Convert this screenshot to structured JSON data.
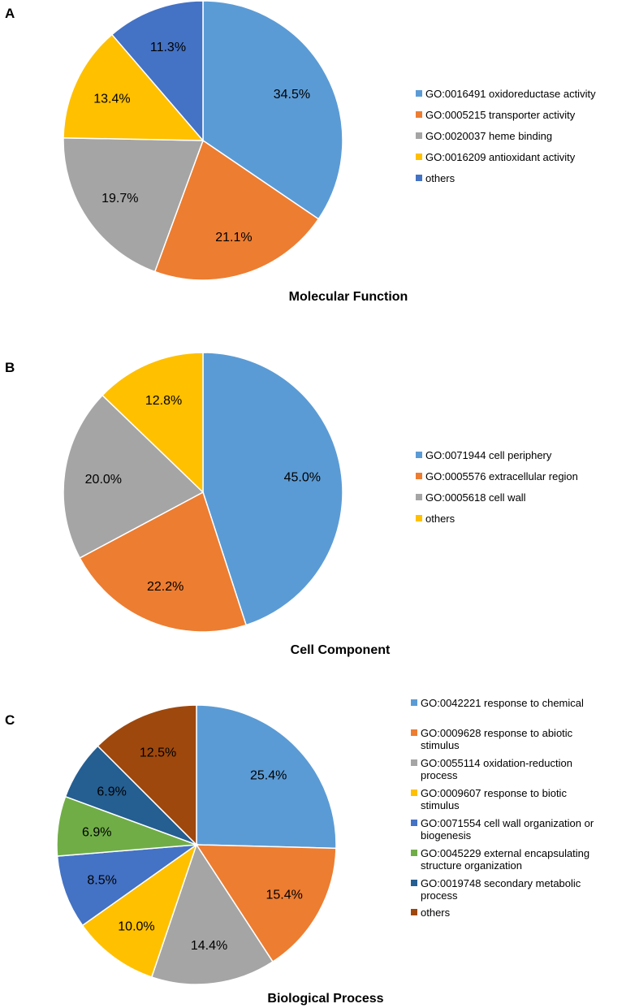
{
  "chart_data": [
    {
      "type": "pie",
      "panel": "A",
      "title": "Molecular Function",
      "series": [
        {
          "name": "GO:0016491 oxidoreductase activity",
          "value": 34.5,
          "label": "34.5%",
          "color": "#5B9BD5"
        },
        {
          "name": "GO:0005215 transporter activity",
          "value": 21.1,
          "label": "21.1%",
          "color": "#ED7D31"
        },
        {
          "name": "GO:0020037 heme binding",
          "value": 19.7,
          "label": "19.7%",
          "color": "#A5A5A5"
        },
        {
          "name": "GO:0016209 antioxidant activity",
          "value": 13.4,
          "label": "13.4%",
          "color": "#FFC000"
        },
        {
          "name": "others",
          "value": 11.3,
          "label": "11.3%",
          "color": "#4472C4"
        }
      ]
    },
    {
      "type": "pie",
      "panel": "B",
      "title": "Cell Component",
      "series": [
        {
          "name": "GO:0071944 cell periphery",
          "value": 45.0,
          "label": "45.0%",
          "color": "#5B9BD5"
        },
        {
          "name": "GO:0005576 extracellular region",
          "value": 22.2,
          "label": "22.2%",
          "color": "#ED7D31"
        },
        {
          "name": "GO:0005618 cell wall",
          "value": 20.0,
          "label": "20.0%",
          "color": "#A5A5A5"
        },
        {
          "name": "others",
          "value": 12.8,
          "label": "12.8%",
          "color": "#FFC000"
        }
      ]
    },
    {
      "type": "pie",
      "panel": "C",
      "title": "Biological Process",
      "series": [
        {
          "name": "GO:0042221 response to chemical",
          "value": 25.4,
          "label": "25.4%",
          "color": "#5B9BD5"
        },
        {
          "name": "GO:0009628 response to abiotic stimulus",
          "value": 15.4,
          "label": "15.4%",
          "color": "#ED7D31"
        },
        {
          "name": "GO:0055114 oxidation-reduction process",
          "value": 14.4,
          "label": "14.4%",
          "color": "#A5A5A5"
        },
        {
          "name": "GO:0009607 response to biotic stimulus",
          "value": 10.0,
          "label": "10.0%",
          "color": "#FFC000"
        },
        {
          "name": "GO:0071554 cell wall organization or biogenesis",
          "value": 8.5,
          "label": "8.5%",
          "color": "#4472C4"
        },
        {
          "name": "GO:0045229 external encapsulating structure organization",
          "value": 6.9,
          "label": "6.9%",
          "color": "#70AD47"
        },
        {
          "name": "GO:0019748 secondary metabolic process",
          "value": 6.9,
          "label": "6.9%",
          "color": "#255E91"
        },
        {
          "name": "others",
          "value": 12.5,
          "label": "12.5%",
          "color": "#9E480E"
        }
      ]
    }
  ]
}
